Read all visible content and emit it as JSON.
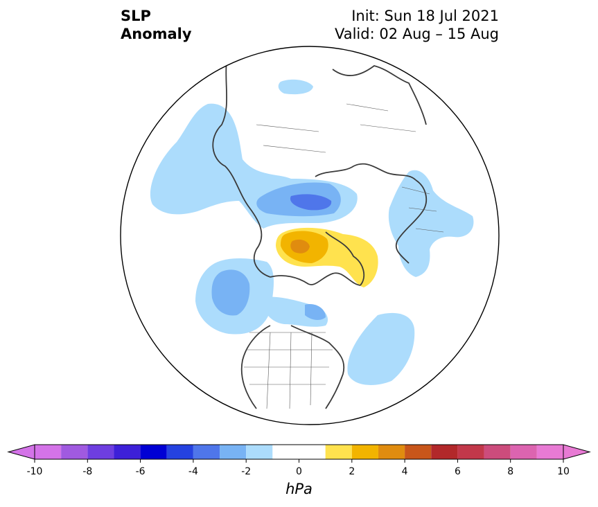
{
  "title": {
    "left_line1": "SLP",
    "left_line2": "Anomaly",
    "init": "Init: Sun 18 Jul 2021",
    "valid": "Valid: 02 Aug – 15 Aug"
  },
  "colorbar": {
    "unit": "hPa",
    "ticks": [
      "-10",
      "-8",
      "-6",
      "-4",
      "-2",
      "0",
      "2",
      "4",
      "6",
      "8",
      "10"
    ],
    "levels": [
      -10,
      -9,
      -8,
      -7,
      -6,
      -5,
      -4,
      -3,
      -2,
      -1,
      1,
      2,
      3,
      4,
      5,
      6,
      7,
      8,
      9,
      10
    ],
    "colors": [
      "#d473e8",
      "#a05ae0",
      "#6e3ee0",
      "#3d20d8",
      "#0000d4",
      "#2542e0",
      "#4f76ea",
      "#78b3f4",
      "#acdcfc",
      "#ffffff",
      "#ffe24e",
      "#f2b400",
      "#e08c0f",
      "#c8561a",
      "#b2282a",
      "#c2384a",
      "#cc4c7c",
      "#dc64b0",
      "#e87ad4"
    ],
    "extend_low_color": "#d473e8",
    "extend_high_color": "#e87ad4"
  },
  "map": {
    "projection": "north-polar-stereographic",
    "variable": "sea-level-pressure-anomaly"
  }
}
